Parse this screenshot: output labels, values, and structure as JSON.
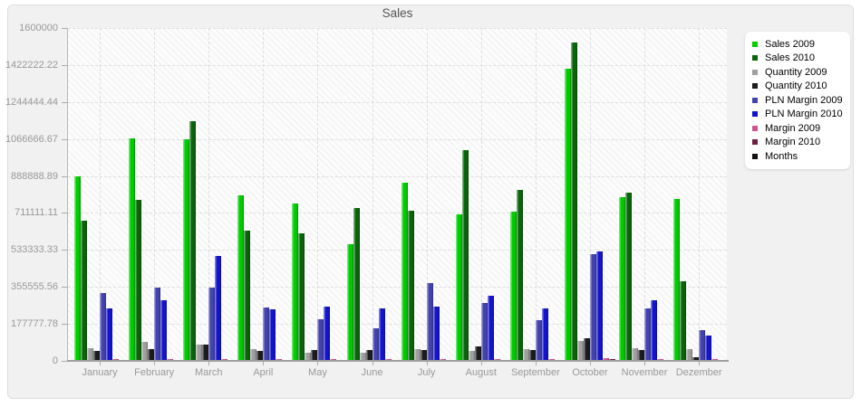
{
  "chart_data": {
    "type": "bar",
    "title": "Sales",
    "categories": [
      "January",
      "February",
      "March",
      "April",
      "May",
      "June",
      "July",
      "August",
      "September",
      "October",
      "November",
      "Dezember"
    ],
    "ylim": [
      0,
      1600000
    ],
    "y_tick_labels_top_to_bottom": [
      "1600000",
      "1422222.22",
      "1244444.44",
      "1066666.67",
      "888888.89",
      "711111.11",
      "533333.33",
      "355555.56",
      "177777.78",
      "0"
    ],
    "grid": true,
    "legend_position": "right",
    "plot_background": "hatched",
    "series": [
      {
        "name": "Sales 2009",
        "color": "#00cc00",
        "plotted": true,
        "values": [
          885000,
          1068000,
          1067000,
          795000,
          755000,
          560000,
          855000,
          705000,
          718000,
          1405000,
          787000,
          780000
        ]
      },
      {
        "name": "Sales 2010",
        "color": "#0a650a",
        "plotted": true,
        "values": [
          672000,
          772000,
          1150000,
          625000,
          615000,
          733000,
          720000,
          1015000,
          820000,
          1530000,
          807000,
          384000
        ]
      },
      {
        "name": "Quantity 2009",
        "color": "#a0a0a0",
        "plotted": true,
        "values": [
          62000,
          90000,
          80000,
          56000,
          40000,
          40000,
          57000,
          48000,
          58000,
          94000,
          61000,
          56000
        ]
      },
      {
        "name": "Quantity 2010",
        "color": "#1c1c1c",
        "plotted": true,
        "values": [
          46000,
          56000,
          77000,
          47000,
          51000,
          54000,
          54000,
          68000,
          51000,
          108000,
          52000,
          16000
        ]
      },
      {
        "name": "PLN Margin 2009",
        "color": "#4343ad",
        "plotted": true,
        "values": [
          324000,
          350000,
          354000,
          256000,
          198000,
          158000,
          372000,
          280000,
          195000,
          515000,
          251000,
          149000
        ]
      },
      {
        "name": "PLN Margin 2010",
        "color": "#1414cc",
        "plotted": true,
        "values": [
          252000,
          293000,
          506000,
          249000,
          262000,
          252000,
          259000,
          315000,
          252000,
          528000,
          293000,
          123000
        ]
      },
      {
        "name": "Margin 2009",
        "color": "#cc5590",
        "plotted": true,
        "values": [
          9000,
          10000,
          9000,
          8000,
          8000,
          9000,
          8000,
          9000,
          8000,
          11000,
          9000,
          8000
        ]
      },
      {
        "name": "Margin 2010",
        "color": "#6e2040",
        "plotted": true,
        "values": [
          5000,
          6000,
          5000,
          5000,
          5000,
          5000,
          5000,
          6000,
          5000,
          7000,
          6000,
          5000
        ]
      },
      {
        "name": "Months",
        "color": "#111111",
        "plotted": false,
        "values": [
          0,
          0,
          0,
          0,
          0,
          0,
          0,
          0,
          0,
          0,
          0,
          0
        ]
      }
    ]
  }
}
